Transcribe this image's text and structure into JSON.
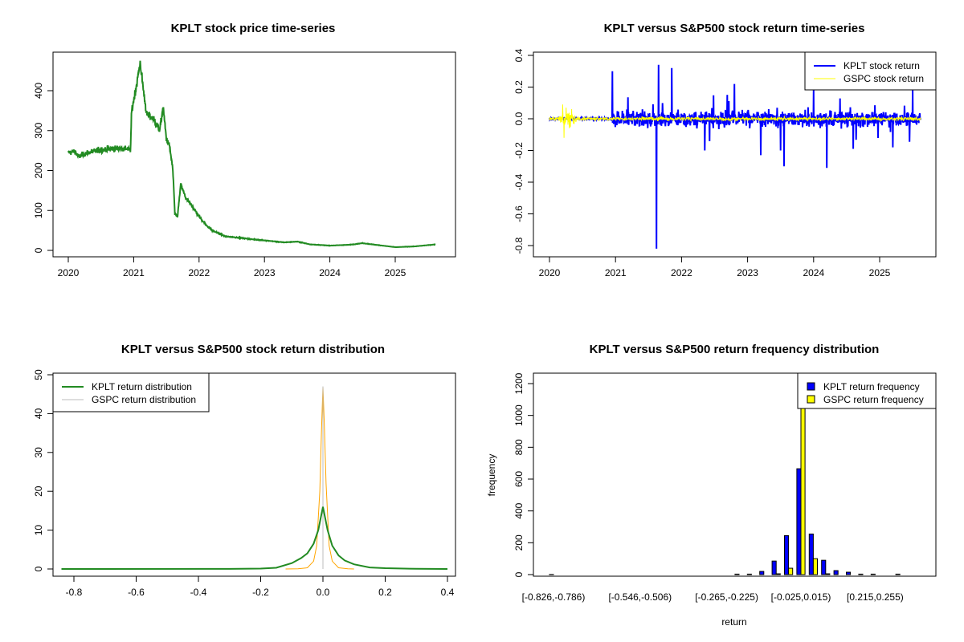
{
  "chart_data": [
    {
      "type": "line",
      "title": "KPLT stock price time-series",
      "xlabel": "",
      "ylabel": "",
      "xlim": [
        2019.8,
        2025.9
      ],
      "ylim": [
        0,
        480
      ],
      "x_ticks": [
        "2020",
        "2021",
        "2022",
        "2023",
        "2024",
        "2025"
      ],
      "y_ticks": [
        "0",
        "100",
        "200",
        "300",
        "400"
      ],
      "color": "#228B22",
      "series": [
        {
          "name": "KPLT price",
          "x": [
            2020.0,
            2020.1,
            2020.15,
            2020.3,
            2020.5,
            2020.7,
            2020.9,
            2020.95,
            2020.97,
            2021.05,
            2021.1,
            2021.15,
            2021.2,
            2021.3,
            2021.4,
            2021.45,
            2021.5,
            2021.55,
            2021.6,
            2021.63,
            2021.67,
            2021.72,
            2021.8,
            2021.9,
            2022.0,
            2022.1,
            2022.2,
            2022.4,
            2022.6,
            2022.8,
            2023.0,
            2023.3,
            2023.5,
            2023.7,
            2024.0,
            2024.3,
            2024.5,
            2024.8,
            2025.0,
            2025.3,
            2025.62
          ],
          "y": [
            245,
            248,
            235,
            245,
            252,
            255,
            255,
            250,
            350,
            420,
            470,
            400,
            340,
            330,
            300,
            360,
            280,
            260,
            200,
            90,
            85,
            165,
            130,
            110,
            85,
            65,
            50,
            35,
            32,
            28,
            25,
            20,
            22,
            15,
            12,
            14,
            18,
            12,
            8,
            10,
            15
          ]
        }
      ]
    },
    {
      "type": "line",
      "title": "KPLT versus S&P500 stock return time-series",
      "xlabel": "",
      "ylabel": "",
      "xlim": [
        2019.8,
        2025.9
      ],
      "ylim": [
        -0.83,
        0.42
      ],
      "x_ticks": [
        "2020",
        "2021",
        "2022",
        "2023",
        "2024",
        "2025"
      ],
      "y_ticks": [
        "-0.8",
        "-0.6",
        "-0.4",
        "-0.2",
        "0.0",
        "0.2",
        "0.4"
      ],
      "legend": {
        "position": "top-right",
        "entries": [
          {
            "label": "KPLT stock return",
            "color": "#0000FF"
          },
          {
            "label": "GSPC stock return",
            "color": "#FFFF00"
          }
        ]
      },
      "kplt_extreme_returns": [
        {
          "x": 2020.95,
          "y": 0.3
        },
        {
          "x": 2021.62,
          "y": -0.82
        },
        {
          "x": 2021.65,
          "y": 0.34
        },
        {
          "x": 2021.85,
          "y": 0.32
        },
        {
          "x": 2022.35,
          "y": -0.2
        },
        {
          "x": 2022.8,
          "y": 0.22
        },
        {
          "x": 2023.2,
          "y": -0.23
        },
        {
          "x": 2023.5,
          "y": -0.2
        },
        {
          "x": 2023.55,
          "y": -0.3
        },
        {
          "x": 2024.0,
          "y": 0.18
        },
        {
          "x": 2024.2,
          "y": -0.31
        },
        {
          "x": 2024.6,
          "y": -0.19
        },
        {
          "x": 2025.2,
          "y": -0.18
        },
        {
          "x": 2025.5,
          "y": 0.2
        }
      ],
      "gspc_extreme_returns": [
        {
          "x": 2020.2,
          "y": 0.09
        },
        {
          "x": 2020.22,
          "y": -0.12
        },
        {
          "x": 2020.25,
          "y": 0.07
        },
        {
          "x": 2020.3,
          "y": -0.06
        }
      ]
    },
    {
      "type": "line",
      "title": "KPLT versus S&P500 stock return distribution",
      "xlabel": "",
      "ylabel": "",
      "xlim": [
        -0.85,
        0.42
      ],
      "ylim": [
        0,
        50
      ],
      "x_ticks": [
        "-0.8",
        "-0.6",
        "-0.4",
        "-0.2",
        "0.0",
        "0.2",
        "0.4"
      ],
      "y_ticks": [
        "0",
        "10",
        "20",
        "30",
        "40",
        "50"
      ],
      "legend": {
        "position": "top-left",
        "entries": [
          {
            "label": "KPLT return distribution",
            "color": "#228B22"
          },
          {
            "label": "GSPC return distribution",
            "color": "#BEBEBE"
          }
        ]
      },
      "series": [
        {
          "name": "KPLT",
          "color": "#228B22",
          "x": [
            -0.84,
            -0.3,
            -0.2,
            -0.15,
            -0.1,
            -0.07,
            -0.05,
            -0.03,
            -0.015,
            0,
            0.015,
            0.03,
            0.05,
            0.07,
            0.1,
            0.15,
            0.2,
            0.3,
            0.4
          ],
          "y": [
            0,
            0.02,
            0.1,
            0.3,
            1.5,
            2.8,
            4,
            6.5,
            10,
            16,
            10,
            6,
            3.5,
            2.2,
            1.2,
            0.4,
            0.2,
            0.05,
            0
          ]
        },
        {
          "name": "GSPC",
          "color": "#FFA500",
          "x": [
            -0.12,
            -0.08,
            -0.05,
            -0.03,
            -0.02,
            -0.01,
            -0.005,
            0,
            0.005,
            0.01,
            0.02,
            0.03,
            0.05,
            0.08,
            0.1
          ],
          "y": [
            0,
            0.05,
            0.3,
            2,
            6,
            20,
            35,
            47,
            36,
            22,
            6,
            2,
            0.3,
            0.05,
            0
          ]
        }
      ]
    },
    {
      "type": "bar",
      "title": "KPLT versus S&P500 return frequency distribution",
      "xlabel": "return",
      "ylabel": "frequency",
      "ylim": [
        0,
        1260
      ],
      "y_ticks": [
        "0",
        "200",
        "400",
        "600",
        "800",
        "1000",
        "1200"
      ],
      "bin_start": -0.826,
      "bin_width": 0.04,
      "bin_count": 31,
      "x_tick_labels": [
        {
          "bin": 0,
          "label": "[-0.826,-0.786)"
        },
        {
          "bin": 7,
          "label": "[-0.546,-0.506)"
        },
        {
          "bin": 14,
          "label": "[-0.265,-0.225)"
        },
        {
          "bin": 20,
          "label": "[-0.025,0.015)"
        },
        {
          "bin": 26,
          "label": "[0.215,0.255)"
        }
      ],
      "legend": {
        "position": "top-right",
        "entries": [
          {
            "label": "KPLT return frequency",
            "color": "#0000FF"
          },
          {
            "label": "GSPC return frequency",
            "color": "#FFFF00"
          }
        ]
      },
      "series": [
        {
          "name": "KPLT",
          "color": "#0000FF",
          "values": [
            1,
            0,
            0,
            0,
            0,
            0,
            0,
            0,
            0,
            0,
            0,
            0,
            0,
            0,
            0,
            3,
            3,
            20,
            85,
            245,
            665,
            255,
            90,
            25,
            15,
            3,
            3,
            0,
            3,
            0,
            0
          ]
        },
        {
          "name": "GSPC",
          "color": "#FFFF00",
          "values": [
            0,
            0,
            0,
            0,
            0,
            0,
            0,
            0,
            0,
            0,
            0,
            0,
            0,
            0,
            0,
            0,
            0,
            0,
            5,
            40,
            1255,
            100,
            5,
            0,
            0,
            0,
            0,
            0,
            0,
            0,
            0
          ]
        }
      ]
    }
  ]
}
